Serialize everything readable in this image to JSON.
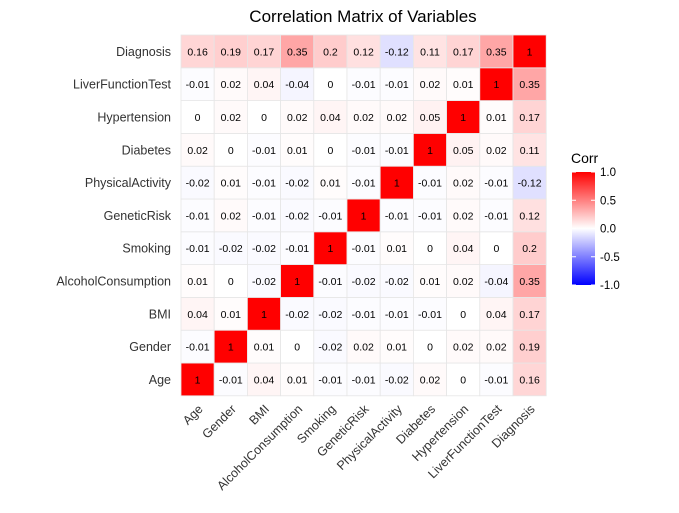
{
  "chart_data": {
    "type": "heatmap",
    "title": "Correlation Matrix of Variables",
    "variables": [
      "Age",
      "Gender",
      "BMI",
      "AlcoholConsumption",
      "Smoking",
      "GeneticRisk",
      "PhysicalActivity",
      "Diabetes",
      "Hypertension",
      "LiverFunctionTest",
      "Diagnosis"
    ],
    "matrix": [
      [
        1,
        -0.01,
        0.04,
        0.01,
        -0.01,
        -0.01,
        -0.02,
        0.02,
        0,
        -0.01,
        0.16
      ],
      [
        -0.01,
        1,
        0.01,
        0,
        -0.02,
        0.02,
        0.01,
        0,
        0.02,
        0.02,
        0.19
      ],
      [
        0.04,
        0.01,
        1,
        -0.02,
        -0.02,
        -0.01,
        -0.01,
        -0.01,
        0,
        0.04,
        0.17
      ],
      [
        0.01,
        0,
        -0.02,
        1,
        -0.01,
        -0.02,
        -0.02,
        0.01,
        0.02,
        -0.04,
        0.35
      ],
      [
        -0.01,
        -0.02,
        -0.02,
        -0.01,
        1,
        -0.01,
        0.01,
        0,
        0.04,
        0,
        0.2
      ],
      [
        -0.01,
        0.02,
        -0.01,
        -0.02,
        -0.01,
        1,
        -0.01,
        -0.01,
        0.02,
        -0.01,
        0.12
      ],
      [
        -0.02,
        0.01,
        -0.01,
        -0.02,
        0.01,
        -0.01,
        1,
        -0.01,
        0.02,
        -0.01,
        -0.12
      ],
      [
        0.02,
        0,
        -0.01,
        0.01,
        0,
        -0.01,
        -0.01,
        1,
        0.05,
        0.02,
        0.11
      ],
      [
        0,
        0.02,
        0,
        0.02,
        0.04,
        0.02,
        0.02,
        0.05,
        1,
        0.01,
        0.17
      ],
      [
        -0.01,
        0.02,
        0.04,
        -0.04,
        0,
        -0.01,
        -0.01,
        0.02,
        0.01,
        1,
        0.35
      ],
      [
        0.16,
        0.19,
        0.17,
        0.35,
        0.2,
        0.12,
        -0.12,
        0.11,
        0.17,
        0.35,
        1
      ]
    ],
    "legend": {
      "title": "Corr",
      "ticks": [
        1.0,
        0.5,
        0.0,
        -0.5,
        -1.0
      ],
      "tick_labels": [
        "1.0",
        "0.5",
        "0.0",
        "-0.5",
        "-1.0"
      ],
      "range": [
        -1,
        1
      ],
      "placement": "right"
    },
    "colors": {
      "high": "#ff0000",
      "mid": "#ffffff",
      "low": "#0000ff",
      "cell_border": "#e6e6e6"
    },
    "grid": false
  }
}
